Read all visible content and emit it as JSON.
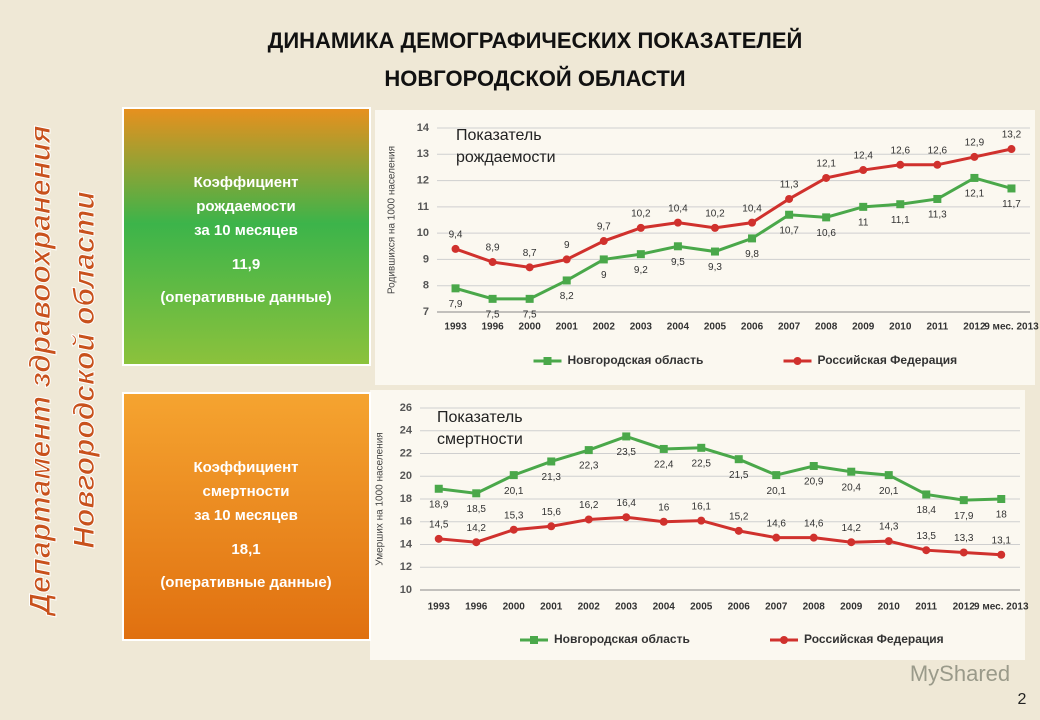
{
  "slide": {
    "title": [
      "ДИНАМИКА ДЕМОГРАФИЧЕСКИХ ПОКАЗАТЕЛЕЙ",
      "НОВГОРОДСКОЙ ОБЛАСТИ"
    ],
    "side_text": [
      "Департамент здравоохранения",
      "Новгородской области"
    ],
    "boxes": [
      {
        "lines": [
          "Коэффициент",
          "рождаемости",
          "за 10 месяцев"
        ],
        "value": "11,9",
        "note": "(оперативные данные)"
      },
      {
        "lines": [
          "Коэффициент",
          "смертности",
          "за 10 месяцев"
        ],
        "value": "18,1",
        "note": "(оперативные данные)"
      }
    ],
    "watermark": "MyShared",
    "page_number": "2"
  },
  "chart_data": [
    {
      "type": "line",
      "annotation": [
        "Показатель",
        "рождаемости"
      ],
      "y_label": "Родившихся на 1000 населения",
      "categories": [
        "1993",
        "1996",
        "2000",
        "2001",
        "2002",
        "2003",
        "2004",
        "2005",
        "2006",
        "2007",
        "2008",
        "2009",
        "2010",
        "2011",
        "2012",
        "9 мес. 2013"
      ],
      "ylim": [
        7,
        14
      ],
      "yticks": [
        7,
        8,
        9,
        10,
        11,
        12,
        13,
        14
      ],
      "grid": true,
      "series": [
        {
          "name": "Новгородская область",
          "color": "#4aa84a",
          "marker": "square",
          "values": [
            7.9,
            7.5,
            7.5,
            8.2,
            9,
            9.2,
            9.5,
            9.3,
            9.8,
            10.7,
            10.6,
            11,
            11.1,
            11.3,
            12.1,
            11.7
          ],
          "value_labels": [
            "7,9",
            "7,5",
            "7,5",
            "8,2",
            "9",
            "9,2",
            "9,5",
            "9,3",
            "9,8",
            "10,7",
            "10,6",
            "11",
            "11,1",
            "11,3",
            "12,1",
            "11,7"
          ]
        },
        {
          "name": "Российская Федерация",
          "color": "#d0312d",
          "marker": "circle",
          "values": [
            9.4,
            8.9,
            8.7,
            9,
            9.7,
            10.2,
            10.4,
            10.2,
            10.4,
            11.3,
            12.1,
            12.4,
            12.6,
            12.6,
            12.9,
            13.2
          ],
          "value_labels": [
            "9,4",
            "8,9",
            "8,7",
            "9",
            "9,7",
            "10,2",
            "10,4",
            "10,2",
            "10,4",
            "11,3",
            "12,1",
            "12,4",
            "12,6",
            "12,6",
            "12,9",
            "13,2"
          ]
        }
      ]
    },
    {
      "type": "line",
      "annotation": [
        "Показатель",
        "смертности"
      ],
      "y_label": "Умерших на 1000 населения",
      "categories": [
        "1993",
        "1996",
        "2000",
        "2001",
        "2002",
        "2003",
        "2004",
        "2005",
        "2006",
        "2007",
        "2008",
        "2009",
        "2010",
        "2011",
        "2012",
        "9 мес. 2013"
      ],
      "ylim": [
        10,
        26
      ],
      "yticks": [
        10,
        12,
        14,
        16,
        18,
        20,
        22,
        24,
        26
      ],
      "grid": true,
      "series": [
        {
          "name": "Новгородская область",
          "color": "#4aa84a",
          "marker": "square",
          "values": [
            18.9,
            18.5,
            20.1,
            21.3,
            22.3,
            23.5,
            22.4,
            22.5,
            21.5,
            20.1,
            20.9,
            20.4,
            20.1,
            18.4,
            17.9,
            18
          ],
          "value_labels": [
            "18,9",
            "18,5",
            "20,1",
            "21,3",
            "22,3",
            "23,5",
            "22,4",
            "22,5",
            "21,5",
            "20,1",
            "20,9",
            "20,4",
            "20,1",
            "18,4",
            "17,9",
            "18"
          ]
        },
        {
          "name": "Российская Федерация",
          "color": "#d0312d",
          "marker": "circle",
          "values": [
            14.5,
            14.2,
            15.3,
            15.6,
            16.2,
            16.4,
            16,
            16.1,
            15.2,
            14.6,
            14.6,
            14.2,
            14.3,
            13.5,
            13.3,
            13.1
          ],
          "value_labels": [
            "14,5",
            "14,2",
            "15,3",
            "15,6",
            "16,2",
            "16,4",
            "16",
            "16,1",
            "15,2",
            "14,6",
            "14,6",
            "14,2",
            "14,3",
            "13,5",
            "13,3",
            "13,1"
          ]
        }
      ]
    }
  ]
}
